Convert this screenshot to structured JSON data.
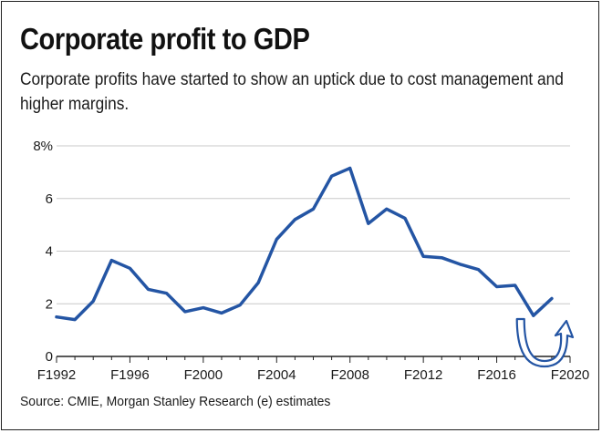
{
  "title": "Corporate profit to GDP",
  "subtitle": "Corporate profits have started to show an uptick due to cost management and higher margins.",
  "source": "Source: CMIE, Morgan Stanley Research (e) estimates",
  "colors": {
    "line": "#2455a4",
    "grid": "#c8c8c8",
    "axis": "#222222",
    "text": "#1a1a1a"
  },
  "chart_data": {
    "type": "line",
    "title": "Corporate profit to GDP",
    "xlabel": "",
    "ylabel": "",
    "ylim": [
      0,
      8
    ],
    "xlim": [
      1992,
      2020
    ],
    "grid": true,
    "y_ticks": [
      0,
      2,
      4,
      6,
      8
    ],
    "y_tick_labels": [
      "0",
      "2",
      "4",
      "6",
      "8%"
    ],
    "x_ticks": [
      1992,
      1996,
      2000,
      2004,
      2008,
      2012,
      2016,
      2020
    ],
    "x_tick_labels": [
      "F1992",
      "F1996",
      "F2000",
      "F2004",
      "F2008",
      "F2012",
      "F2016",
      "F2020"
    ],
    "series": [
      {
        "x": [
          1992,
          1993,
          1994,
          1995,
          1996,
          1997,
          1998,
          1999,
          2000,
          2001,
          2002,
          2003,
          2004,
          2005,
          2006,
          2007,
          2008,
          2009,
          2010,
          2011,
          2012,
          2013,
          2014,
          2015,
          2016,
          2017,
          2018,
          2019
        ],
        "values": [
          1.5,
          1.4,
          2.1,
          3.65,
          3.35,
          2.55,
          2.4,
          1.7,
          1.85,
          1.65,
          1.95,
          2.8,
          4.45,
          5.2,
          5.6,
          6.85,
          7.15,
          5.05,
          5.6,
          5.25,
          3.8,
          3.75,
          3.5,
          3.3,
          2.65,
          2.7,
          1.55,
          2.2
        ]
      }
    ],
    "annotations": [
      {
        "type": "uptick-arrow",
        "x_range": [
          2017.5,
          2019.7
        ]
      }
    ]
  }
}
